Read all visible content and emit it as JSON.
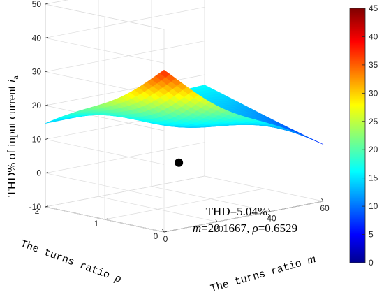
{
  "chart_data": {
    "type": "surface",
    "zlabel": "THD% of input current ",
    "zlabel_var": "i",
    "zlabel_sub": "a",
    "xlabel": "The turns ratio ",
    "xlabel_var": "m",
    "ylabel": "The turns ratio ",
    "ylabel_var": "ρ",
    "zlim": [
      -10,
      50
    ],
    "xlim": [
      0,
      60
    ],
    "ylim": [
      0,
      2
    ],
    "z_ticks": [
      "-10",
      "0",
      "10",
      "20",
      "30",
      "40",
      "50"
    ],
    "x_ticks": [
      "0",
      "20",
      "40",
      "60"
    ],
    "y_ticks": [
      "0",
      "1",
      "2"
    ],
    "grid": true,
    "colormap": "jet",
    "colorbar": {
      "range": [
        0,
        45
      ],
      "ticks": [
        "0",
        "5",
        "10",
        "15",
        "20",
        "25",
        "30",
        "35",
        "40",
        "45"
      ],
      "placement": "right"
    },
    "surface_corners": {
      "m0_rho0": 40,
      "m0_rho2": 15,
      "m60_rho0": 7,
      "m60_rho2": 17
    },
    "minimum_point": {
      "m": 20.1667,
      "rho": 0.6529,
      "thd": 5.04
    },
    "annotation_line1": "THD=5.04%,",
    "annotation_line2_m": "m",
    "annotation_line2_a": "=20.1667, ",
    "annotation_line2_rho": "ρ",
    "annotation_line2_b": "=0.6529"
  }
}
